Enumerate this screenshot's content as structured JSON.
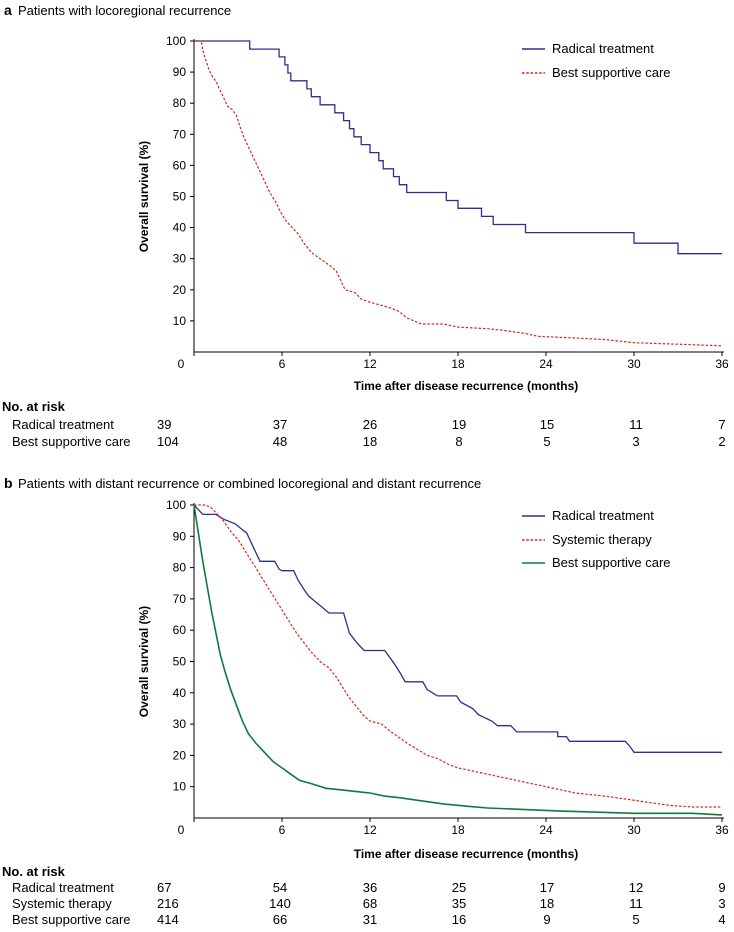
{
  "chart_data": [
    {
      "type": "line",
      "panel": "a",
      "title": "Patients with locoregional recurrence",
      "xlabel": "Time after disease recurrence (months)",
      "ylabel": "Overall survival (%)",
      "xlim": [
        0,
        36
      ],
      "ylim": [
        0,
        100
      ],
      "xticks": [
        0,
        6,
        12,
        18,
        24,
        30,
        36
      ],
      "yticks": [
        10,
        20,
        30,
        40,
        50,
        60,
        70,
        80,
        90,
        100
      ],
      "grid": false,
      "legend_position": "top-right",
      "series": [
        {
          "name": "Radical treatment",
          "color": "#2b2f8f",
          "dash": "solid",
          "points": [
            [
              0,
              100
            ],
            [
              3.8,
              100
            ],
            [
              3.8,
              97.4
            ],
            [
              5.8,
              97.4
            ],
            [
              5.8,
              94.9
            ],
            [
              6.2,
              94.9
            ],
            [
              6.2,
              92.3
            ],
            [
              6.4,
              92.3
            ],
            [
              6.4,
              89.7
            ],
            [
              6.6,
              89.7
            ],
            [
              6.6,
              87.2
            ],
            [
              7.7,
              87.2
            ],
            [
              7.7,
              84.6
            ],
            [
              8.0,
              84.6
            ],
            [
              8.0,
              82.1
            ],
            [
              8.6,
              82.1
            ],
            [
              8.6,
              79.5
            ],
            [
              9.6,
              79.5
            ],
            [
              9.6,
              76.9
            ],
            [
              10.2,
              76.9
            ],
            [
              10.2,
              74.4
            ],
            [
              10.6,
              74.4
            ],
            [
              10.6,
              71.8
            ],
            [
              10.9,
              71.8
            ],
            [
              10.9,
              69.2
            ],
            [
              11.4,
              69.2
            ],
            [
              11.4,
              66.7
            ],
            [
              12.0,
              66.7
            ],
            [
              12.0,
              64.1
            ],
            [
              12.6,
              64.1
            ],
            [
              12.6,
              61.5
            ],
            [
              12.9,
              61.5
            ],
            [
              12.9,
              58.9
            ],
            [
              13.6,
              58.9
            ],
            [
              13.6,
              56.4
            ],
            [
              14.0,
              56.4
            ],
            [
              14.0,
              53.8
            ],
            [
              14.5,
              53.8
            ],
            [
              14.5,
              51.3
            ],
            [
              17.2,
              51.3
            ],
            [
              17.2,
              48.7
            ],
            [
              18.0,
              48.7
            ],
            [
              18.0,
              46.2
            ],
            [
              19.6,
              46.2
            ],
            [
              19.6,
              43.6
            ],
            [
              20.4,
              43.6
            ],
            [
              20.4,
              41.0
            ],
            [
              22.6,
              41.0
            ],
            [
              22.6,
              38.4
            ],
            [
              30.0,
              38.4
            ],
            [
              30.0,
              35.0
            ],
            [
              33.0,
              35.0
            ],
            [
              33.0,
              31.6
            ],
            [
              36,
              31.6
            ]
          ]
        },
        {
          "name": "Best supportive care",
          "color": "#d9261c",
          "dash": "dotted",
          "points": [
            [
              0,
              100
            ],
            [
              0.5,
              100
            ],
            [
              0.6,
              97
            ],
            [
              0.8,
              94
            ],
            [
              1.0,
              91
            ],
            [
              1.2,
              89
            ],
            [
              1.5,
              87
            ],
            [
              1.7,
              85
            ],
            [
              2.0,
              82
            ],
            [
              2.3,
              79
            ],
            [
              2.6,
              78
            ],
            [
              2.9,
              76
            ],
            [
              3.1,
              73
            ],
            [
              3.4,
              69
            ],
            [
              3.7,
              66
            ],
            [
              4.0,
              63
            ],
            [
              4.3,
              60
            ],
            [
              4.6,
              57
            ],
            [
              4.9,
              54
            ],
            [
              5.2,
              51
            ],
            [
              5.6,
              48
            ],
            [
              5.9,
              45
            ],
            [
              6.3,
              42
            ],
            [
              6.7,
              40
            ],
            [
              7.1,
              38
            ],
            [
              7.5,
              35
            ],
            [
              8.0,
              32
            ],
            [
              8.6,
              30
            ],
            [
              9.2,
              28
            ],
            [
              9.7,
              26
            ],
            [
              10.0,
              23
            ],
            [
              10.3,
              20
            ],
            [
              11.0,
              19
            ],
            [
              11.4,
              17
            ],
            [
              12.0,
              16
            ],
            [
              12.8,
              15
            ],
            [
              13.5,
              14
            ],
            [
              14.0,
              13
            ],
            [
              14.5,
              11
            ],
            [
              15.0,
              10
            ],
            [
              15.5,
              9
            ],
            [
              17.0,
              9
            ],
            [
              18.0,
              8
            ],
            [
              20.0,
              7.5
            ],
            [
              21.0,
              7
            ],
            [
              22.5,
              6
            ],
            [
              23.5,
              5
            ],
            [
              26.0,
              4.5
            ],
            [
              28.0,
              4
            ],
            [
              30.0,
              3
            ],
            [
              33.0,
              2.5
            ],
            [
              36,
              2
            ]
          ]
        }
      ],
      "risk_table": {
        "heading": "No. at risk",
        "columns": [
          0,
          6,
          12,
          18,
          24,
          30,
          36
        ],
        "rows": [
          {
            "label": "Radical treatment",
            "values": [
              "39",
              "37",
              "26",
              "19",
              "15",
              "11",
              "7"
            ]
          },
          {
            "label": "Best supportive care",
            "values": [
              "104",
              "48",
              "18",
              "8",
              "5",
              "3",
              "2"
            ]
          }
        ]
      }
    },
    {
      "type": "line",
      "panel": "b",
      "title": "Patients with distant recurrence  or combined locoregional and distant recurrence",
      "xlabel": "Time after disease recurrence (months)",
      "ylabel": "Overall survival (%)",
      "xlim": [
        0,
        36
      ],
      "ylim": [
        0,
        100
      ],
      "xticks": [
        0,
        6,
        12,
        18,
        24,
        30,
        36
      ],
      "yticks": [
        10,
        20,
        30,
        40,
        50,
        60,
        70,
        80,
        90,
        100
      ],
      "grid": false,
      "legend_position": "top-right",
      "series": [
        {
          "name": "Radical treatment",
          "color": "#2b2f8f",
          "dash": "solid",
          "points": [
            [
              0,
              100
            ],
            [
              0.3,
              98.5
            ],
            [
              0.6,
              97
            ],
            [
              1.5,
              97
            ],
            [
              2.0,
              95.5
            ],
            [
              2.8,
              94
            ],
            [
              3.2,
              92.5
            ],
            [
              3.6,
              91
            ],
            [
              3.9,
              88
            ],
            [
              4.2,
              85
            ],
            [
              4.5,
              82
            ],
            [
              5.5,
              82
            ],
            [
              5.8,
              79.5
            ],
            [
              6.0,
              79
            ],
            [
              6.8,
              79
            ],
            [
              7.1,
              76
            ],
            [
              7.5,
              73
            ],
            [
              7.8,
              71
            ],
            [
              8.3,
              69
            ],
            [
              8.7,
              67.5
            ],
            [
              9.2,
              65.5
            ],
            [
              10.2,
              65.5
            ],
            [
              10.6,
              59
            ],
            [
              11.1,
              56
            ],
            [
              11.6,
              53.5
            ],
            [
              13.0,
              53.5
            ],
            [
              13.4,
              51
            ],
            [
              13.7,
              49
            ],
            [
              14.1,
              46
            ],
            [
              14.4,
              43.5
            ],
            [
              15.6,
              43.5
            ],
            [
              15.9,
              41
            ],
            [
              16.6,
              39
            ],
            [
              17.9,
              39
            ],
            [
              18.2,
              37
            ],
            [
              19.0,
              35
            ],
            [
              19.4,
              33
            ],
            [
              20.3,
              31
            ],
            [
              20.7,
              29.5
            ],
            [
              21.6,
              29.5
            ],
            [
              22.0,
              27.5
            ],
            [
              24.8,
              27.5
            ],
            [
              24.8,
              26
            ],
            [
              25.4,
              26
            ],
            [
              25.6,
              24.5
            ],
            [
              29.4,
              24.5
            ],
            [
              29.7,
              23
            ],
            [
              30.0,
              21
            ],
            [
              36,
              21
            ]
          ]
        },
        {
          "name": "Systemic therapy",
          "color": "#d9261c",
          "dash": "dotted",
          "points": [
            [
              0,
              100
            ],
            [
              0.8,
              100
            ],
            [
              1.2,
              99
            ],
            [
              1.6,
              97
            ],
            [
              2.0,
              95
            ],
            [
              2.3,
              93
            ],
            [
              2.6,
              91
            ],
            [
              3.0,
              89
            ],
            [
              3.4,
              86
            ],
            [
              3.8,
              83
            ],
            [
              4.2,
              80
            ],
            [
              4.6,
              77
            ],
            [
              5.0,
              74
            ],
            [
              5.4,
              71
            ],
            [
              5.8,
              68
            ],
            [
              6.2,
              65
            ],
            [
              6.6,
              62
            ],
            [
              7.0,
              59
            ],
            [
              7.5,
              56
            ],
            [
              8.0,
              53
            ],
            [
              8.6,
              50
            ],
            [
              9.2,
              48
            ],
            [
              9.7,
              45
            ],
            [
              10.1,
              42
            ],
            [
              10.5,
              39
            ],
            [
              11.0,
              36
            ],
            [
              11.5,
              33
            ],
            [
              12.0,
              31
            ],
            [
              12.8,
              30
            ],
            [
              13.3,
              28
            ],
            [
              13.9,
              26
            ],
            [
              14.5,
              24
            ],
            [
              15.2,
              22
            ],
            [
              15.9,
              20
            ],
            [
              16.6,
              19
            ],
            [
              17.4,
              17
            ],
            [
              18.0,
              16
            ],
            [
              19.0,
              15
            ],
            [
              20.0,
              14
            ],
            [
              21.0,
              13
            ],
            [
              22.0,
              12
            ],
            [
              23.0,
              11
            ],
            [
              24.0,
              10
            ],
            [
              25.0,
              9
            ],
            [
              26.0,
              8
            ],
            [
              28.0,
              7
            ],
            [
              29.5,
              6
            ],
            [
              31.0,
              5
            ],
            [
              32.5,
              4
            ],
            [
              34.0,
              3.5
            ],
            [
              36,
              3.5
            ]
          ]
        },
        {
          "name": "Best supportive care",
          "color": "#0e7a3e",
          "dash": "solid",
          "points": [
            [
              0,
              100
            ],
            [
              0.3,
              91
            ],
            [
              0.6,
              82
            ],
            [
              0.9,
              74
            ],
            [
              1.2,
              66
            ],
            [
              1.5,
              59
            ],
            [
              1.8,
              52
            ],
            [
              2.1,
              47
            ],
            [
              2.5,
              41
            ],
            [
              2.9,
              36
            ],
            [
              3.3,
              31
            ],
            [
              3.7,
              27
            ],
            [
              4.2,
              24
            ],
            [
              4.8,
              21
            ],
            [
              5.4,
              18
            ],
            [
              6.0,
              16
            ],
            [
              6.6,
              14
            ],
            [
              7.2,
              12
            ],
            [
              8.0,
              11
            ],
            [
              9.0,
              9.5
            ],
            [
              10.0,
              9
            ],
            [
              11.0,
              8.5
            ],
            [
              12.0,
              8
            ],
            [
              13.0,
              7
            ],
            [
              14.0,
              6.5
            ],
            [
              15.5,
              5.5
            ],
            [
              17.0,
              4.5
            ],
            [
              18.5,
              3.8
            ],
            [
              20.0,
              3.2
            ],
            [
              22.0,
              2.8
            ],
            [
              25.0,
              2.2
            ],
            [
              30.0,
              1.5
            ],
            [
              34.0,
              1.5
            ],
            [
              36,
              1
            ]
          ]
        }
      ],
      "risk_table": {
        "heading": "No. at risk",
        "columns": [
          0,
          6,
          12,
          18,
          24,
          30,
          36
        ],
        "rows": [
          {
            "label": "Radical treatment",
            "values": [
              "67",
              "54",
              "36",
              "25",
              "17",
              "12",
              "9"
            ]
          },
          {
            "label": "Systemic therapy",
            "values": [
              "216",
              "140",
              "68",
              "35",
              "18",
              "11",
              "3"
            ]
          },
          {
            "label": "Best supportive care",
            "values": [
              "414",
              "66",
              "31",
              "16",
              "9",
              "5",
              "4"
            ]
          }
        ]
      }
    }
  ]
}
